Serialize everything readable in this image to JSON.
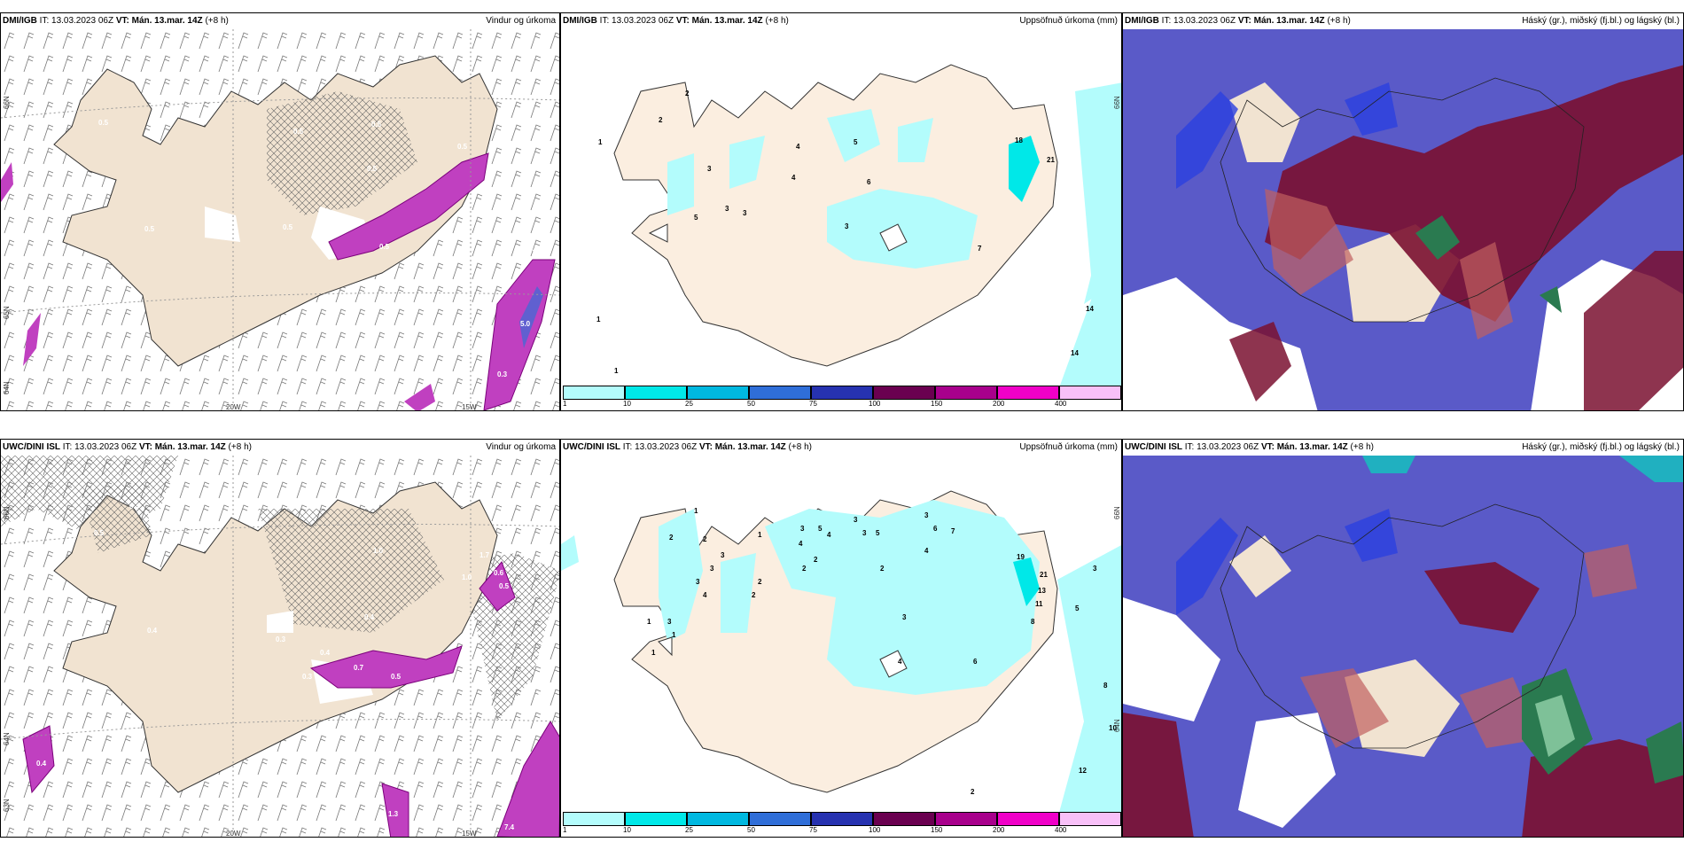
{
  "panels": {
    "p1": {
      "model": "DMI/IGB",
      "it": " IT: 13.03.2023 06Z ",
      "vt": "VT: Mán. 13.mar. 14Z",
      "lead": " (+8 h)",
      "title": "Vindur og úrkoma",
      "lat_labels": [
        "66N",
        "65N",
        "64N"
      ],
      "lon_labels": [
        "20W",
        "15W"
      ],
      "values": [
        "0.5",
        "0.5",
        "0.5",
        "0.5",
        "0.5",
        "0.5",
        "0.5",
        "0.5",
        "0.5",
        "5.0",
        "0.3"
      ]
    },
    "p2": {
      "model": "DMI/IGB",
      "it": " IT: 13.03.2023 06Z ",
      "vt": "VT: Mán. 13.mar. 14Z",
      "lead": " (+8 h)",
      "title": "Uppsöfnuð úrkoma (mm)",
      "lon_labels": [
        "66N",
        "65N"
      ],
      "values": [
        "1",
        "2",
        "2",
        "3",
        "3",
        "5",
        "4",
        "5",
        "4",
        "3",
        "6",
        "18",
        "21",
        "3",
        "7",
        "14",
        "14",
        "1",
        "1"
      ]
    },
    "p3": {
      "model": "DMI/IGB",
      "it": " IT: 13.03.2023 06Z ",
      "vt": "VT: Mán. 13.mar. 14Z",
      "lead": " (+8 h)",
      "title": "Háský (gr.), miðský (fj.bl.) og lágský (bl.)"
    },
    "p4": {
      "model": "UWC/DINI ISL",
      "it": " IT: 13.03.2023 06Z ",
      "vt": "VT: Mán. 13.mar. 14Z",
      "lead": " (+8 h)",
      "title": "Vindur og úrkoma",
      "lat_labels": [
        "66N",
        "64N",
        "63N"
      ],
      "lon_labels": [
        "20W",
        "15W"
      ],
      "values": [
        "0.4",
        "0.5",
        "0.4",
        "0.3",
        "0.4",
        "0.7",
        "0.5",
        "1.0",
        "0.4",
        "1.0",
        "1.7",
        "0.6",
        "0.5",
        "0.4",
        "0.3",
        "1.0",
        "1.3",
        "7.4"
      ]
    },
    "p5": {
      "model": "UWC/DINI ISL",
      "it": " IT: 13.03.2023 06Z ",
      "vt": "VT: Mán. 13.mar. 14Z",
      "lead": " (+8 h)",
      "title": "Uppsöfnuð úrkoma (mm)",
      "lon_labels": [
        "66N",
        "64N"
      ],
      "values": [
        "1",
        "2",
        "2",
        "1",
        "3",
        "3",
        "3",
        "4",
        "2",
        "2",
        "1",
        "3",
        "3",
        "5",
        "4",
        "2",
        "4",
        "2",
        "3",
        "3",
        "3",
        "5",
        "2",
        "6",
        "7",
        "19",
        "21",
        "13",
        "11",
        "5",
        "8",
        "3",
        "4",
        "6",
        "4",
        "3",
        "1",
        "8",
        "10",
        "12",
        "2",
        "1"
      ]
    },
    "p6": {
      "model": "UWC/DINI ISL",
      "it": " IT: 13.03.2023 06Z ",
      "vt": "VT: Mán. 13.mar. 14Z",
      "lead": " (+8 h)",
      "title": "Háský (gr.), miðský (fj.bl.) og lágský (bl.)"
    }
  },
  "legend": {
    "ticks": [
      "1",
      "10",
      "25",
      "50",
      "75",
      "100",
      "150",
      "200",
      "400"
    ],
    "colors": [
      "#b3fcfc",
      "#00e8e8",
      "#00b8e0",
      "#2f6ed8",
      "#2632b0",
      "#6a0050",
      "#a8008c",
      "#f000c8",
      "#f8c0f8"
    ]
  }
}
